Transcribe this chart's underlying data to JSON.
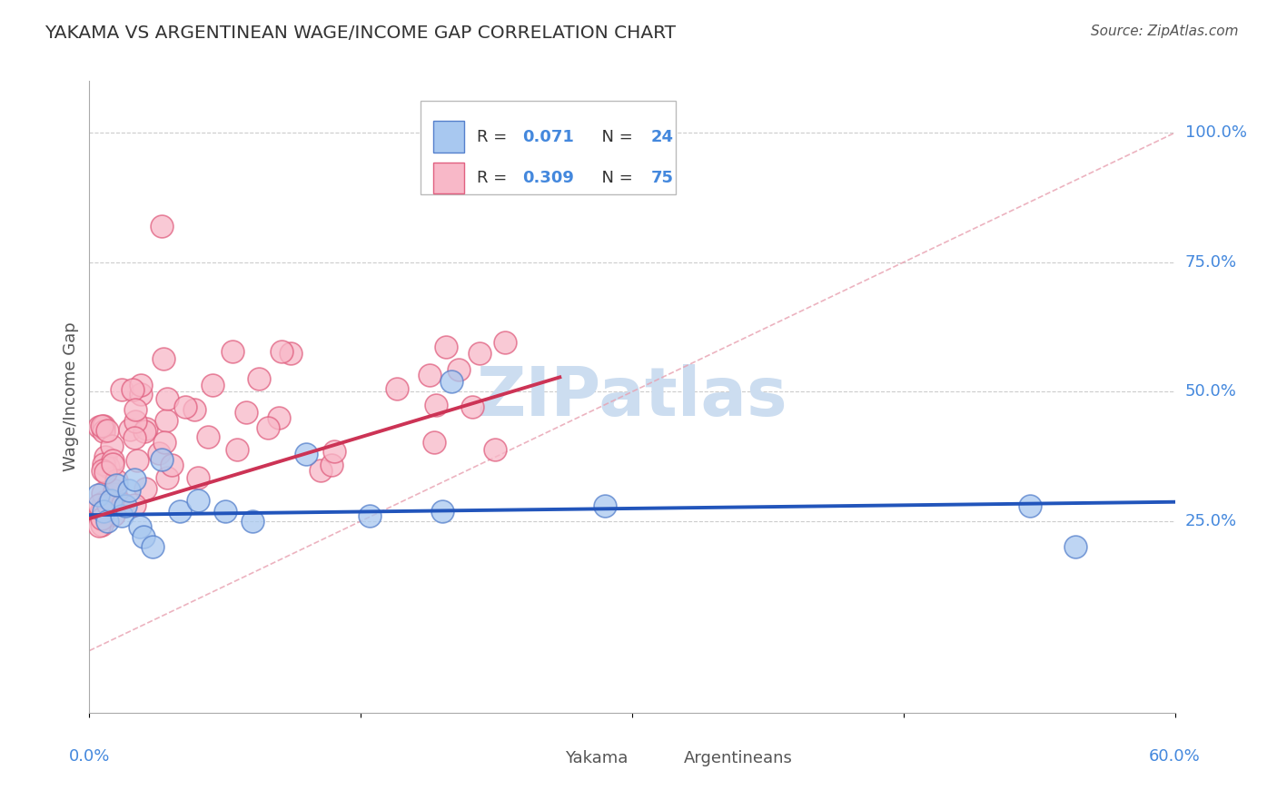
{
  "title": "YAKAMA VS ARGENTINEAN WAGE/INCOME GAP CORRELATION CHART",
  "source": "Source: ZipAtlas.com",
  "ylabel": "Wage/Income Gap",
  "y_tick_labels": [
    "100.0%",
    "75.0%",
    "50.0%",
    "25.0%"
  ],
  "y_tick_values": [
    1.0,
    0.75,
    0.5,
    0.25
  ],
  "x_lim": [
    0.0,
    0.6
  ],
  "y_lim": [
    -0.12,
    1.1
  ],
  "legend_r1": "R = 0.071",
  "legend_n1": "N = 24",
  "legend_r2": "R = 0.309",
  "legend_n2": "N = 75",
  "watermark": "ZIPatlas",
  "watermark_color": "#ccddf0",
  "background_color": "#ffffff",
  "blue_dot_face": "#a8c8f0",
  "blue_dot_edge": "#5580cc",
  "pink_dot_face": "#f8b8c8",
  "pink_dot_edge": "#e06080",
  "blue_line_color": "#2255bb",
  "pink_line_color": "#cc3355",
  "diag_line_color": "#e8a0b0",
  "title_color": "#333333",
  "axis_label_color": "#4488dd",
  "grid_color": "#cccccc",
  "spine_color": "#aaaaaa",
  "source_color": "#555555",
  "ylabel_color": "#555555",
  "bottom_legend_color": "#555555",
  "blue_slope": 0.042,
  "blue_intercept": 0.262,
  "pink_slope": 1.05,
  "pink_intercept": 0.255,
  "pink_line_x_end": 0.26
}
